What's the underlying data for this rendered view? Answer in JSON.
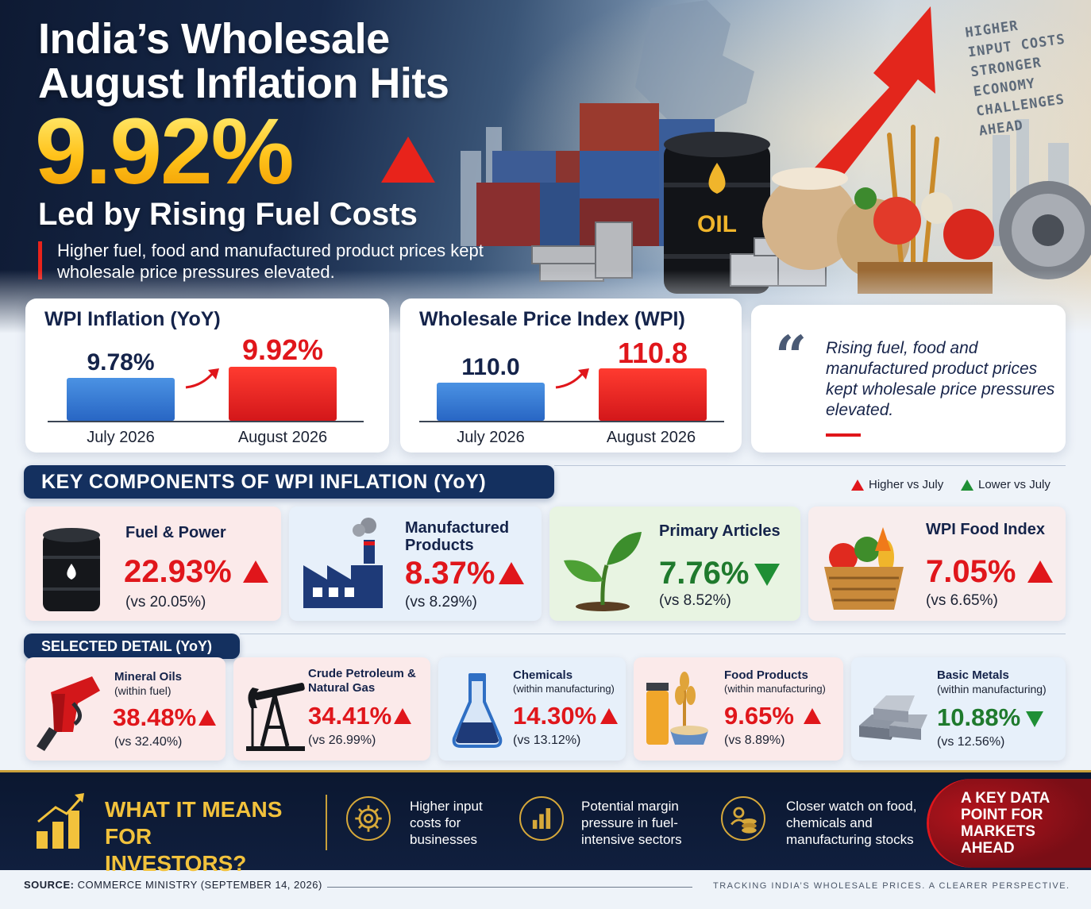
{
  "hero": {
    "title_line1": "India’s Wholesale",
    "title_line2": "August Inflation Hits",
    "headline_value": "9.92%",
    "subtitle": "Led by Rising Fuel Costs",
    "lede": "Higher fuel, food and manufactured product prices kept wholesale price pressures elevated.",
    "tagline": [
      "HIGHER",
      "INPUT COSTS",
      "STRONGER",
      "ECONOMY",
      "CHALLENGES",
      "AHEAD"
    ],
    "barrel_label": "OIL"
  },
  "wpi_inflation_card": {
    "title": "WPI Inflation (YoY)",
    "bars": [
      {
        "label": "July 2026",
        "value_text": "9.78%",
        "value": 9.78
      },
      {
        "label": "August 2026",
        "value_text": "9.92%",
        "value": 9.92
      }
    ]
  },
  "wpi_index_card": {
    "title": "Wholesale Price Index (WPI)",
    "bars": [
      {
        "label": "July 2026",
        "value_text": "110.0",
        "value": 110.0
      },
      {
        "label": "August 2026",
        "value_text": "110.8",
        "value": 110.8
      }
    ]
  },
  "quote_card": {
    "mark": "“",
    "text": "Rising fuel, food and manufactured product prices kept wholesale price pressures elevated."
  },
  "key_components": {
    "heading": "KEY COMPONENTS OF WPI INFLATION (YoY)",
    "legend": {
      "higher": "Higher vs July",
      "lower": "Lower vs July"
    },
    "items": [
      {
        "title": "Fuel & Power",
        "value": "22.93%",
        "prev": "(vs 20.05%)",
        "direction": "up",
        "icon": "oil-barrel-icon"
      },
      {
        "title": "Manufactured Products",
        "value": "8.37%",
        "prev": "(vs 8.29%)",
        "direction": "up",
        "icon": "factory-icon"
      },
      {
        "title": "Primary Articles",
        "value": "7.76%",
        "prev": "(vs 8.52%)",
        "direction": "down",
        "icon": "sprout-icon"
      },
      {
        "title": "WPI Food Index",
        "value": "7.05%",
        "prev": "(vs 6.65%)",
        "direction": "up",
        "icon": "food-basket-icon"
      }
    ]
  },
  "selected_detail": {
    "heading": "SELECTED DETAIL (YoY)",
    "items": [
      {
        "title": "Mineral Oils",
        "sub": "(within fuel)",
        "value": "38.48%",
        "prev": "(vs 32.40%)",
        "direction": "up",
        "icon": "fuel-nozzle-icon"
      },
      {
        "title": "Crude Petroleum & Natural Gas",
        "sub": "",
        "value": "34.41%",
        "prev": "(vs 26.99%)",
        "direction": "up",
        "icon": "oil-pump-icon"
      },
      {
        "title": "Chemicals",
        "sub": "(within manufacturing)",
        "value": "14.30%",
        "prev": "(vs 13.12%)",
        "direction": "up",
        "icon": "flask-icon"
      },
      {
        "title": "Food Products",
        "sub": "(within manufacturing)",
        "value": "9.65%",
        "prev": "(vs 8.89%)",
        "direction": "up",
        "icon": "food-products-icon"
      },
      {
        "title": "Basic Metals",
        "sub": "(within manufacturing)",
        "value": "10.88%",
        "prev": "(vs 12.56%)",
        "direction": "down",
        "icon": "metal-ingots-icon"
      }
    ]
  },
  "investors": {
    "title": "WHAT IT MEANS FOR INVESTORS?",
    "points": [
      {
        "text": "Higher input costs for businesses",
        "icon": "gear-icon"
      },
      {
        "text": "Potential margin pressure in fuel-intensive sectors",
        "icon": "bar-chart-icon"
      },
      {
        "text": "Closer watch on food, chemicals and manufacturing stocks",
        "icon": "coins-people-icon"
      }
    ],
    "cta": "A KEY DATA POINT FOR MARKETS AHEAD"
  },
  "footer": {
    "source_label": "SOURCE:",
    "source_text": "COMMERCE MINISTRY (SEPTEMBER 14, 2026)",
    "tagline": "TRACKING INDIA’S WHOLESALE PRICES. A CLEARER PERSPECTIVE."
  },
  "colors": {
    "accent_red": "#e0161b",
    "accent_gold": "#ffc21a",
    "navy": "#14305f",
    "green": "#1f7a2d",
    "blue_bar": "#2866c4"
  }
}
